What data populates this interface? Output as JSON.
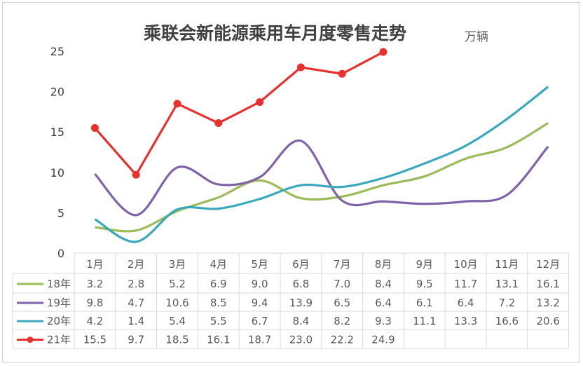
{
  "chart_data": {
    "type": "line",
    "title": "乘联会新能源乘用车月度零售走势",
    "unit": "万辆",
    "categories": [
      "1月",
      "2月",
      "3月",
      "4月",
      "5月",
      "6月",
      "7月",
      "8月",
      "9月",
      "10月",
      "11月",
      "12月"
    ],
    "ylim": [
      0,
      25
    ],
    "yticks": [
      0,
      5,
      10,
      15,
      20,
      25
    ],
    "grid": false,
    "legend": "data-table",
    "series": [
      {
        "name": "18年",
        "color": "#9bbb59",
        "smooth": true,
        "markers": false,
        "values": [
          3.2,
          2.8,
          5.2,
          6.9,
          9.0,
          6.8,
          7.0,
          8.4,
          9.5,
          11.7,
          13.1,
          16.1
        ]
      },
      {
        "name": "19年",
        "color": "#7f63a8",
        "smooth": true,
        "markers": false,
        "values": [
          9.8,
          4.7,
          10.6,
          8.5,
          9.4,
          13.9,
          6.5,
          6.4,
          6.1,
          6.4,
          7.2,
          13.2
        ]
      },
      {
        "name": "20年",
        "color": "#3ba9bd",
        "smooth": true,
        "markers": false,
        "values": [
          4.2,
          1.4,
          5.4,
          5.5,
          6.7,
          8.4,
          8.2,
          9.3,
          11.1,
          13.3,
          16.6,
          20.6
        ]
      },
      {
        "name": "21年",
        "color": "#e8302e",
        "smooth": false,
        "markers": true,
        "values": [
          15.5,
          9.7,
          18.5,
          16.1,
          18.7,
          23.0,
          22.2,
          24.9,
          null,
          null,
          null,
          null
        ]
      }
    ]
  }
}
